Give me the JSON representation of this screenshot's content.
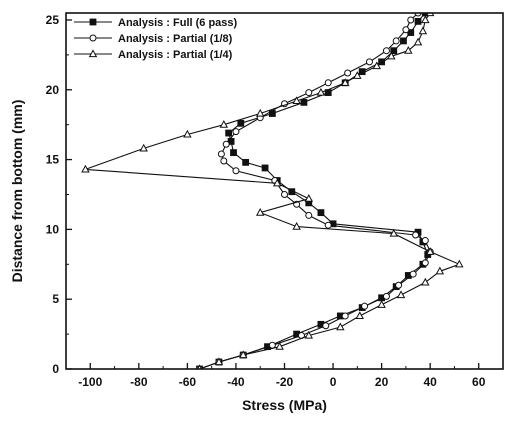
{
  "chart_data": {
    "type": "line",
    "xlabel": "Stress (MPa)",
    "ylabel": "Distance from bottom (mm)",
    "xlim": [
      -110,
      70
    ],
    "ylim": [
      0,
      25.5
    ],
    "xticks": [
      -100,
      -80,
      -60,
      -40,
      -20,
      0,
      20,
      40,
      60
    ],
    "yticks": [
      0,
      5,
      10,
      15,
      20,
      25
    ],
    "grid": false,
    "legend_position": "top-left",
    "series": [
      {
        "name": "Analysis : Full (6 pass)",
        "marker": "square-filled",
        "points": [
          [
            -55,
            0
          ],
          [
            -47,
            0.5
          ],
          [
            -37,
            1.0
          ],
          [
            -27,
            1.6
          ],
          [
            -15,
            2.5
          ],
          [
            -5,
            3.2
          ],
          [
            3,
            3.8
          ],
          [
            12,
            4.4
          ],
          [
            20,
            5.1
          ],
          [
            26,
            5.9
          ],
          [
            31,
            6.7
          ],
          [
            37,
            7.5
          ],
          [
            39,
            8.2
          ],
          [
            37,
            9.1
          ],
          [
            35,
            9.8
          ],
          [
            0,
            10.4
          ],
          [
            -5,
            11.2
          ],
          [
            -10,
            11.9
          ],
          [
            -17,
            12.7
          ],
          [
            -23,
            13.5
          ],
          [
            -28,
            14.4
          ],
          [
            -36,
            14.8
          ],
          [
            -41,
            15.5
          ],
          [
            -42,
            16.3
          ],
          [
            -43,
            16.9
          ],
          [
            -38,
            17.6
          ],
          [
            -25,
            18.3
          ],
          [
            -12,
            19.1
          ],
          [
            -2,
            19.8
          ],
          [
            5,
            20.5
          ],
          [
            12,
            21.3
          ],
          [
            20,
            22.0
          ],
          [
            25,
            22.8
          ],
          [
            29,
            23.5
          ],
          [
            32,
            24.1
          ],
          [
            35,
            24.9
          ],
          [
            38,
            25.5
          ]
        ]
      },
      {
        "name": "Analysis : Partial (1/8)",
        "marker": "circle-open",
        "points": [
          [
            -55,
            0
          ],
          [
            -47,
            0.5
          ],
          [
            -37,
            1.0
          ],
          [
            -25,
            1.7
          ],
          [
            -13,
            2.4
          ],
          [
            -3,
            3.1
          ],
          [
            5,
            3.8
          ],
          [
            13,
            4.5
          ],
          [
            22,
            5.2
          ],
          [
            27,
            6.0
          ],
          [
            33,
            6.8
          ],
          [
            38,
            7.6
          ],
          [
            40,
            8.4
          ],
          [
            38,
            9.2
          ],
          [
            34,
            9.6
          ],
          [
            -2,
            10.3
          ],
          [
            -10,
            11.0
          ],
          [
            -15,
            11.8
          ],
          [
            -20,
            12.5
          ],
          [
            -24,
            13.5
          ],
          [
            -40,
            14.2
          ],
          [
            -45,
            14.9
          ],
          [
            -46,
            15.4
          ],
          [
            -44,
            16.1
          ],
          [
            -40,
            17.0
          ],
          [
            -30,
            18.0
          ],
          [
            -20,
            19.0
          ],
          [
            -10,
            19.8
          ],
          [
            -2,
            20.5
          ],
          [
            6,
            21.2
          ],
          [
            15,
            22.0
          ],
          [
            22,
            22.8
          ],
          [
            26,
            23.5
          ],
          [
            30,
            24.3
          ],
          [
            32,
            25.0
          ],
          [
            35,
            25.5
          ]
        ]
      },
      {
        "name": "Analysis : Partial (1/4)",
        "marker": "triangle-open",
        "points": [
          [
            -55,
            0
          ],
          [
            -47,
            0.5
          ],
          [
            -37,
            1.0
          ],
          [
            -22,
            1.6
          ],
          [
            -10,
            2.4
          ],
          [
            3,
            3.0
          ],
          [
            11,
            3.8
          ],
          [
            20,
            4.6
          ],
          [
            28,
            5.3
          ],
          [
            38,
            6.2
          ],
          [
            44,
            7.0
          ],
          [
            52,
            7.5
          ],
          [
            40,
            8.4
          ],
          [
            25,
            9.7
          ],
          [
            -15,
            10.2
          ],
          [
            -30,
            11.2
          ],
          [
            -10,
            12.2
          ],
          [
            -23,
            13.3
          ],
          [
            -102,
            14.3
          ],
          [
            -78,
            15.8
          ],
          [
            -60,
            16.8
          ],
          [
            -45,
            17.5
          ],
          [
            -30,
            18.3
          ],
          [
            -15,
            19.2
          ],
          [
            -5,
            19.8
          ],
          [
            5,
            20.5
          ],
          [
            10,
            21.0
          ],
          [
            18,
            21.7
          ],
          [
            24,
            22.4
          ],
          [
            31,
            22.8
          ],
          [
            35,
            23.4
          ],
          [
            37,
            24.2
          ],
          [
            38,
            25.0
          ],
          [
            40,
            25.5
          ]
        ]
      }
    ]
  }
}
